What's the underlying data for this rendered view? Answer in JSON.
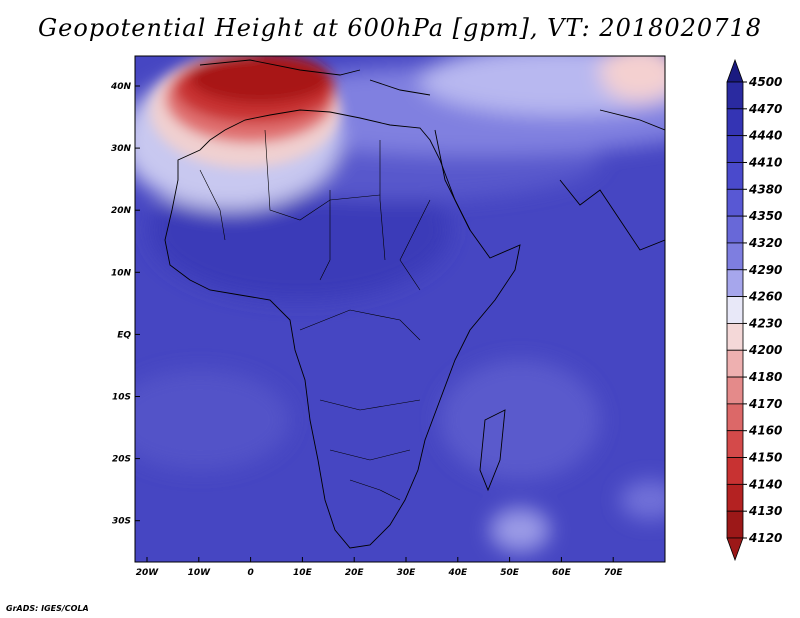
{
  "title": "Geopotential Height at 600hPa [gpm], VT: 2018020718",
  "footer": "GrADS: IGES/COLA",
  "lon_ticks": [
    "20W",
    "10W",
    "0",
    "10E",
    "20E",
    "30E",
    "40E",
    "50E",
    "60E",
    "70E"
  ],
  "lat_ticks": [
    "40N",
    "30N",
    "20N",
    "10N",
    "EQ",
    "10S",
    "20S",
    "30S"
  ],
  "colorbar": {
    "labels": [
      "4500",
      "4470",
      "4440",
      "4410",
      "4380",
      "4350",
      "4320",
      "4290",
      "4260",
      "4230",
      "4200",
      "4180",
      "4170",
      "4160",
      "4150",
      "4140",
      "4130",
      "4120"
    ],
    "colors": [
      "#1a1a80",
      "#2a2aa0",
      "#3434b4",
      "#3e3ec0",
      "#4a4acc",
      "#5858d4",
      "#6868d8",
      "#7e7ee0",
      "#a6a6ec",
      "#e8e8f8",
      "#f4d8d8",
      "#eeb0b0",
      "#e48a8a",
      "#dc6868",
      "#d44a4a",
      "#c83232",
      "#b42222",
      "#9c1818"
    ]
  }
}
